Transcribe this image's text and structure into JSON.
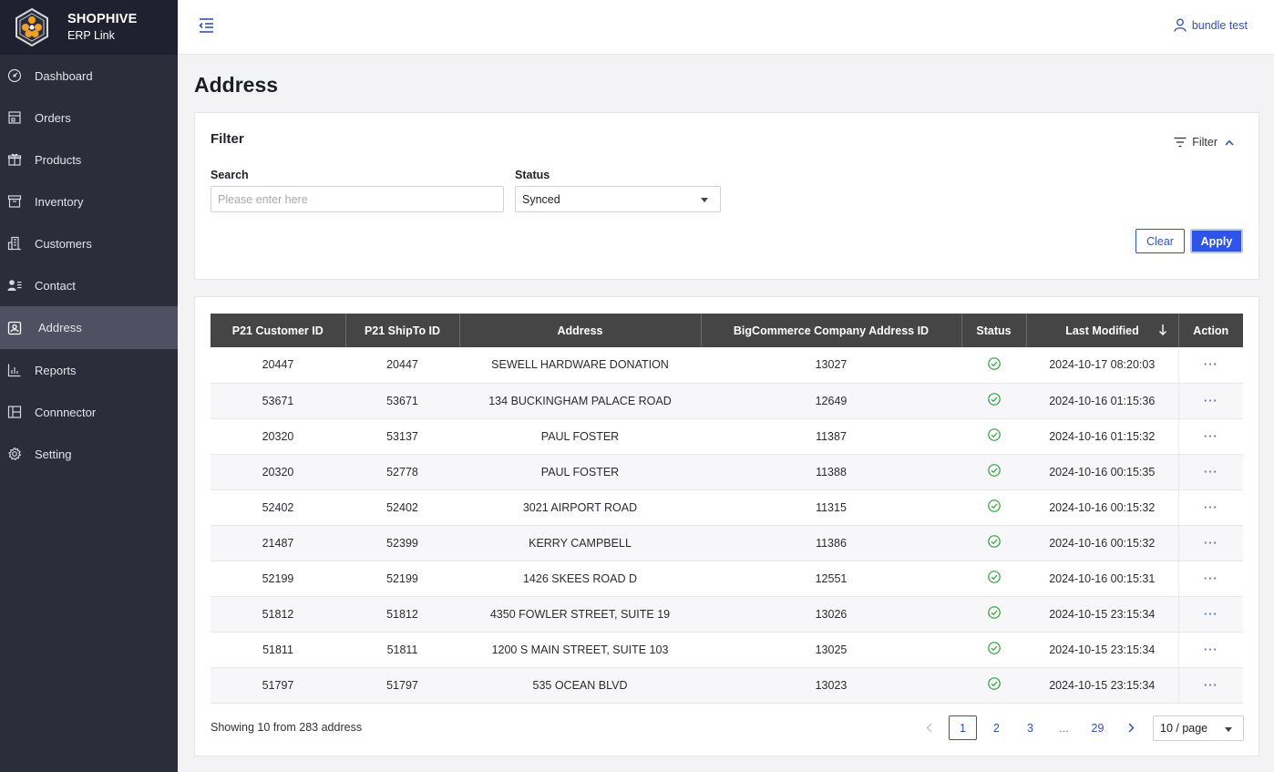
{
  "brand": {
    "name": "SHOPHIVE",
    "subtitle": "ERP Link"
  },
  "sidebar": {
    "items": [
      {
        "label": "Dashboard",
        "icon": "dashboard-icon"
      },
      {
        "label": "Orders",
        "icon": "orders-icon"
      },
      {
        "label": "Products",
        "icon": "gift-icon"
      },
      {
        "label": "Inventory",
        "icon": "inventory-box-icon"
      },
      {
        "label": "Customers",
        "icon": "building-icon"
      },
      {
        "label": "Contact",
        "icon": "contact-card-icon"
      },
      {
        "label": "Address",
        "icon": "address-icon",
        "active": true
      },
      {
        "label": "Reports",
        "icon": "bar-chart-icon"
      },
      {
        "label": "Connnector",
        "icon": "connector-icon"
      },
      {
        "label": "Setting",
        "icon": "gear-icon"
      }
    ]
  },
  "header": {
    "user_name": "bundle test"
  },
  "page": {
    "title": "Address"
  },
  "filter": {
    "title": "Filter",
    "toggle_label": "Filter",
    "search_label": "Search",
    "search_placeholder": "Please enter here",
    "search_value": "",
    "status_label": "Status",
    "status_value": "Synced",
    "clear_label": "Clear",
    "apply_label": "Apply"
  },
  "table": {
    "columns": [
      "P21 Customer ID",
      "P21 ShipTo ID",
      "Address",
      "BigCommerce Company Address ID",
      "Status",
      "Last Modified",
      "Action"
    ],
    "rows": [
      {
        "customer_id": "20447",
        "shipto_id": "20447",
        "address": "SEWELL HARDWARE DONATION",
        "bc_id": "13027",
        "status": "synced",
        "modified": "2024-10-17 08:20:03",
        "action": "···"
      },
      {
        "customer_id": "53671",
        "shipto_id": "53671",
        "address": "134 BUCKINGHAM PALACE ROAD",
        "bc_id": "12649",
        "status": "synced",
        "modified": "2024-10-16 01:15:36",
        "action": "···"
      },
      {
        "customer_id": "20320",
        "shipto_id": "53137",
        "address": "PAUL FOSTER",
        "bc_id": "11387",
        "status": "synced",
        "modified": "2024-10-16 01:15:32",
        "action": "···"
      },
      {
        "customer_id": "20320",
        "shipto_id": "52778",
        "address": "PAUL FOSTER",
        "bc_id": "11388",
        "status": "synced",
        "modified": "2024-10-16 00:15:35",
        "action": "···"
      },
      {
        "customer_id": "52402",
        "shipto_id": "52402",
        "address": "3021 AIRPORT ROAD",
        "bc_id": "11315",
        "status": "synced",
        "modified": "2024-10-16 00:15:32",
        "action": "···"
      },
      {
        "customer_id": "21487",
        "shipto_id": "52399",
        "address": "KERRY CAMPBELL",
        "bc_id": "11386",
        "status": "synced",
        "modified": "2024-10-16 00:15:32",
        "action": "···"
      },
      {
        "customer_id": "52199",
        "shipto_id": "52199",
        "address": "1426 SKEES ROAD D",
        "bc_id": "12551",
        "status": "synced",
        "modified": "2024-10-16 00:15:31",
        "action": "···"
      },
      {
        "customer_id": "51812",
        "shipto_id": "51812",
        "address": "4350 FOWLER STREET, SUITE 19",
        "bc_id": "13026",
        "status": "synced",
        "modified": "2024-10-15 23:15:34",
        "action": "···"
      },
      {
        "customer_id": "51811",
        "shipto_id": "51811",
        "address": "1200 S MAIN STREET, SUITE 103",
        "bc_id": "13025",
        "status": "synced",
        "modified": "2024-10-15 23:15:34",
        "action": "···"
      },
      {
        "customer_id": "51797",
        "shipto_id": "51797",
        "address": "535 OCEAN BLVD",
        "bc_id": "13023",
        "status": "synced",
        "modified": "2024-10-15 23:15:34",
        "action": "···"
      }
    ]
  },
  "pagination": {
    "summary": "Showing 10 from 283 address",
    "pages": [
      "1",
      "2",
      "3",
      "...",
      "29"
    ],
    "current": "1",
    "page_size": "10 / page"
  },
  "colors": {
    "sidebar_bg": "#2b2d3a",
    "accent": "#2f54eb",
    "success": "#2e9e3a",
    "table_header": "#454545"
  }
}
